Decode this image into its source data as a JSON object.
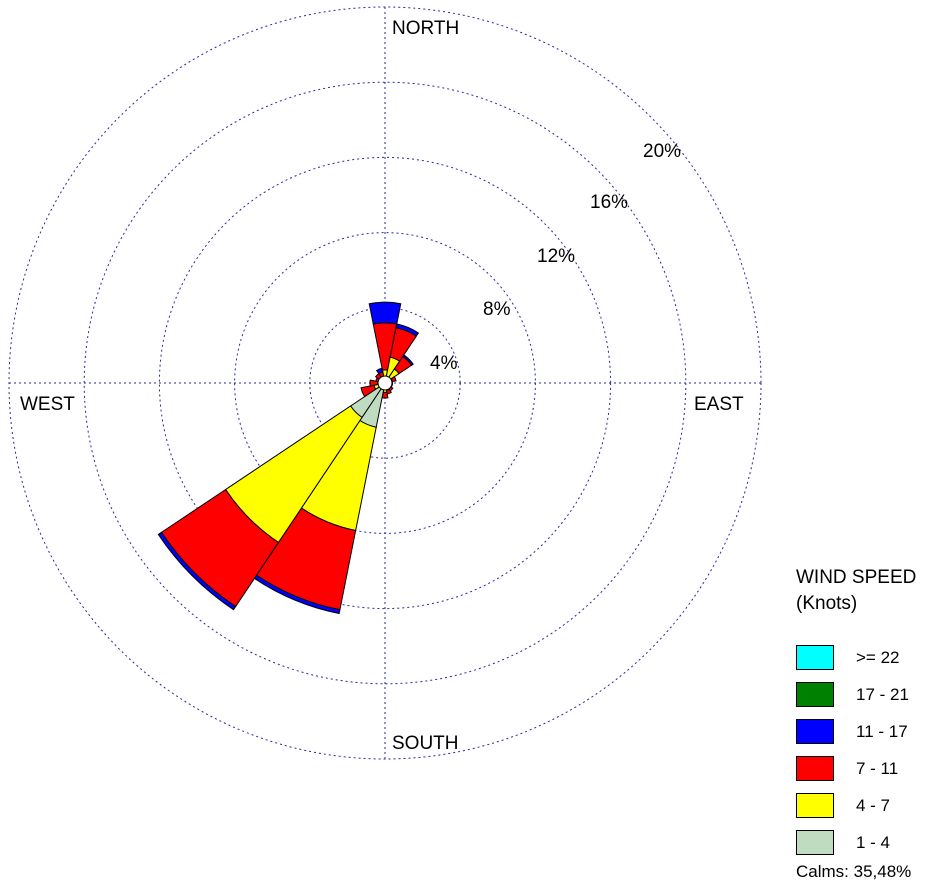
{
  "chart_data": {
    "type": "wind-rose",
    "direction_labels": [
      "NORTH",
      "EAST",
      "SOUTH",
      "WEST"
    ],
    "rings": [
      4,
      8,
      12,
      16,
      20
    ],
    "ring_labels": [
      "4%",
      "8%",
      "12%",
      "16%",
      "20%"
    ],
    "rmax": 20,
    "legend_title_line1": "WIND SPEED",
    "legend_title_line2": "(Knots)",
    "bins": [
      {
        "label": ">= 22",
        "color": "#00ffff"
      },
      {
        "label": "17 - 21",
        "color": "#008000"
      },
      {
        "label": "11 - 17",
        "color": "#0000ff"
      },
      {
        "label": "7 - 11",
        "color": "#ff0000"
      },
      {
        "label": "4 - 7",
        "color": "#ffff00"
      },
      {
        "label": "1 - 4",
        "color": "#c0dcc0"
      }
    ],
    "sector_width_deg": 22.5,
    "stack_order": [
      "1 - 4",
      "4 - 7",
      "7 - 11",
      "11 - 17",
      "17 - 21",
      ">= 22"
    ],
    "sectors": [
      {
        "dir": 0,
        "cum": [
          0.15,
          0.7,
          3.2,
          4.3,
          4.3,
          4.3
        ]
      },
      {
        "dir": 22.5,
        "cum": [
          0.15,
          1.4,
          3.0,
          3.2,
          3.2,
          3.2
        ]
      },
      {
        "dir": 45,
        "cum": [
          0.15,
          0.9,
          1.7,
          1.8,
          1.8,
          1.8
        ]
      },
      {
        "dir": 67.5,
        "cum": [
          0.15,
          0.4,
          0.6,
          0.6,
          0.6,
          0.6
        ]
      },
      {
        "dir": 90,
        "cum": [
          0.15,
          0.3,
          0.4,
          0.4,
          0.4,
          0.4
        ]
      },
      {
        "dir": 112.5,
        "cum": [
          0.15,
          0.3,
          0.4,
          0.4,
          0.4,
          0.4
        ]
      },
      {
        "dir": 135,
        "cum": [
          0.15,
          0.35,
          0.5,
          0.5,
          0.5,
          0.5
        ]
      },
      {
        "dir": 157.5,
        "cum": [
          0.2,
          0.4,
          0.6,
          0.6,
          0.6,
          0.6
        ]
      },
      {
        "dir": 180,
        "cum": [
          0.2,
          0.5,
          0.8,
          0.8,
          0.8,
          0.8
        ]
      },
      {
        "dir": 202.5,
        "cum": [
          2.4,
          8.0,
          12.3,
          12.5,
          12.5,
          12.5
        ]
      },
      {
        "dir": 225,
        "cum": [
          2.2,
          10.2,
          14.3,
          14.5,
          14.5,
          14.5
        ]
      },
      {
        "dir": 247.5,
        "cum": [
          0.2,
          0.6,
          1.3,
          1.3,
          1.3,
          1.3
        ]
      },
      {
        "dir": 270,
        "cum": [
          0.15,
          0.4,
          0.8,
          0.8,
          0.8,
          0.8
        ]
      },
      {
        "dir": 292.5,
        "cum": [
          0.15,
          0.3,
          0.5,
          0.5,
          0.5,
          0.5
        ]
      },
      {
        "dir": 315,
        "cum": [
          0.15,
          0.3,
          0.6,
          0.6,
          0.6,
          0.6
        ]
      },
      {
        "dir": 337.5,
        "cum": [
          0.15,
          0.3,
          0.6,
          0.8,
          0.8,
          0.8
        ]
      }
    ],
    "calms_text": "Calms: 35,48%"
  }
}
